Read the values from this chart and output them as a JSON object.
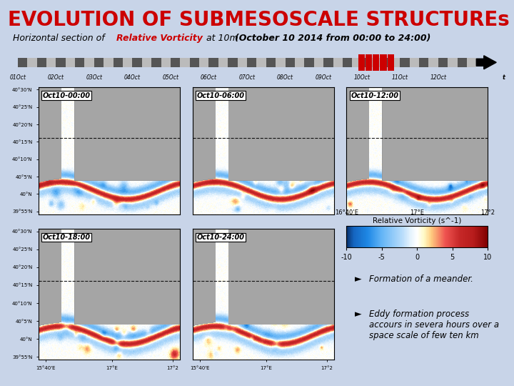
{
  "title": "EVOLUTION OF SUBMESOSCALE STRUCTUREs",
  "title_color": "#CC0000",
  "title_fontsize": 20,
  "background_color": "#c8d4e8",
  "subtitle_fontsize": 9,
  "timeline_labels": [
    "01Oct",
    "02Oct",
    "03Oct",
    "04Oct",
    "05Oct",
    "06Oct",
    "07Oct",
    "08Oct",
    "09Oct",
    "10Oct",
    "11Oct",
    "12Oct",
    "t"
  ],
  "panel_labels": [
    "Oct10-00:00",
    "Oct10-06:00",
    "Oct10-12:00",
    "Oct10-18:00",
    "Oct10-24:00"
  ],
  "colorbar_label": "Relative Vorticity (s^-1)",
  "colorbar_ticks": [
    -10,
    -5,
    0,
    5,
    10
  ],
  "lat_labels": [
    "39°55'N",
    "40°N",
    "40°5'N",
    "40°10'N",
    "40°15'N",
    "40°20'N",
    "40°25'N",
    "40°30'N"
  ],
  "lon_labels": [
    "15°40'E",
    "17°E",
    "17°2"
  ],
  "cb_lon_labels": [
    "16°40’E",
    "17°E",
    "17°2"
  ],
  "bullet_text_1": "Formation of a meander.",
  "bullet_text_2": "Eddy formation process\naccours in severa hours over a\nspace scale of few ten km",
  "info_box_color": "#d8e4f0",
  "panel_bg": "#aaaaaa"
}
